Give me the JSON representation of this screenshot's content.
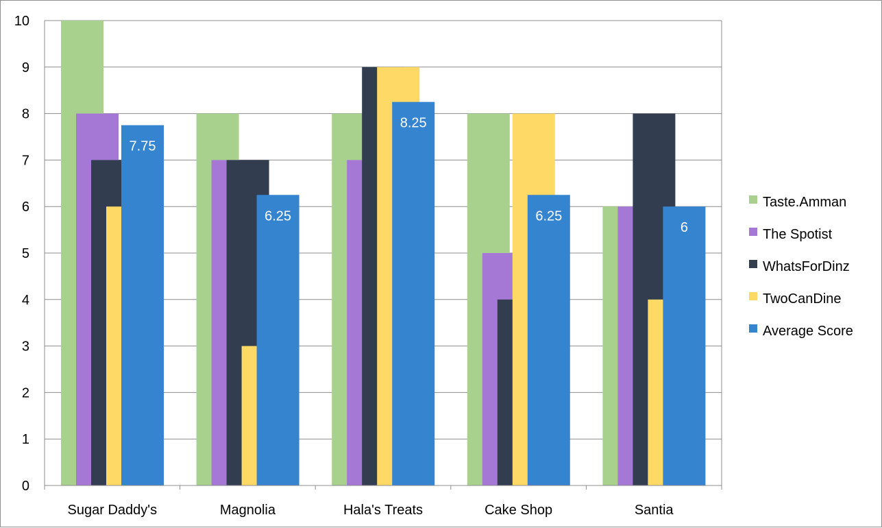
{
  "chart_data": {
    "type": "bar",
    "categories": [
      "Sugar Daddy's",
      "Magnolia",
      "Hala's Treats",
      "Cake Shop",
      "Santia"
    ],
    "series": [
      {
        "name": "Taste.Amman",
        "values": [
          10,
          8,
          8,
          8,
          6
        ],
        "color": "#a9d18e"
      },
      {
        "name": "The Spotist",
        "values": [
          8,
          7,
          7,
          5,
          6
        ],
        "color": "#a678d6"
      },
      {
        "name": "WhatsForDinz",
        "values": [
          7,
          7,
          9,
          4,
          8
        ],
        "color": "#323d4f"
      },
      {
        "name": "TwoCanDine",
        "values": [
          6,
          3,
          9,
          8,
          4
        ],
        "color": "#ffd966"
      },
      {
        "name": "Average Score",
        "values": [
          7.75,
          6.25,
          8.25,
          6.25,
          6
        ],
        "color": "#3584cf"
      }
    ],
    "data_labels": {
      "series": "Average Score",
      "values": [
        "7.75",
        "6.25",
        "8.25",
        "6.25",
        "6"
      ]
    },
    "y_ticks": [
      "0",
      "1",
      "2",
      "3",
      "4",
      "5",
      "6",
      "7",
      "8",
      "9",
      "10"
    ],
    "ylim": [
      0,
      10
    ],
    "grid": true,
    "legend": "right",
    "title": "",
    "xlabel": "",
    "ylabel": ""
  }
}
